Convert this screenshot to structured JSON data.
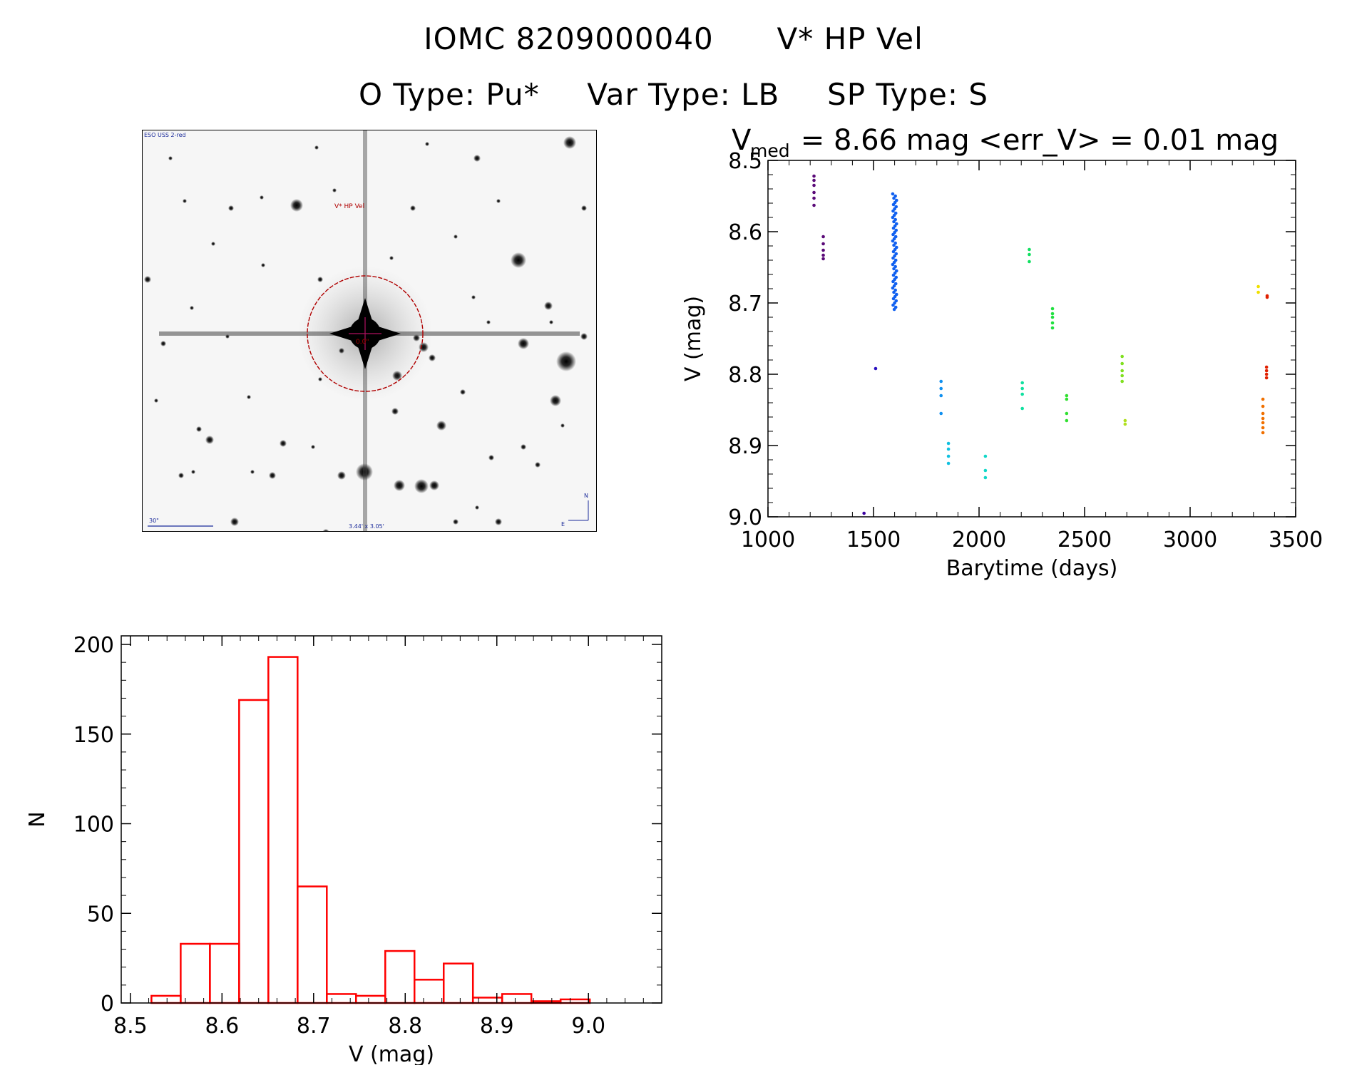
{
  "header": {
    "id_line": "IOMC 8209000040",
    "name_line": "V* HP Vel",
    "o_type": "O Type: Pu*",
    "var_type": "Var Type: LB",
    "sp_type": "SP Type: S"
  },
  "sky_image": {
    "survey_label": "ESO USS 2-red",
    "target_label": "V* HP Vel",
    "center_label": "0.0\"",
    "scale_label": "30\"",
    "field_label": "3.44' x 3.05'",
    "north_label": "N",
    "east_label": "E",
    "colors": {
      "frame": "#000000",
      "annotation": "#b00000",
      "text": "#1a2a9a"
    }
  },
  "chart_data": [
    {
      "type": "scatter",
      "name": "light-curve",
      "title_prefix": "V",
      "title_sub": "med",
      "title_rest": " = 8.66 mag <err_V> = 0.01 mag",
      "xlabel": "Barytime (days)",
      "ylabel": "V (mag)",
      "xlim": [
        1000,
        3500
      ],
      "ylim": [
        9.0,
        8.5
      ],
      "xticks": [
        1000,
        1500,
        2000,
        2500,
        3000,
        3500
      ],
      "xtick_labels": [
        "1000",
        "1500",
        "2000",
        "2500",
        "3000",
        "3500"
      ],
      "yticks": [
        8.5,
        8.6,
        8.7,
        8.8,
        8.9,
        9.0
      ],
      "ytick_labels": [
        "8.5",
        "8.6",
        "8.7",
        "8.8",
        "8.9",
        "9.0"
      ],
      "groups": [
        {
          "t": 1218,
          "mags": [
            8.522,
            8.528,
            8.535,
            8.545,
            8.553,
            8.563
          ],
          "color": "#5a0a78"
        },
        {
          "t": 1262,
          "mags": [
            8.607,
            8.617,
            8.626,
            8.633,
            8.638
          ],
          "color": "#5a0a78"
        },
        {
          "t": 1455,
          "mags": [
            8.995
          ],
          "color": "#3a00a0"
        },
        {
          "t": 1510,
          "mags": [
            8.792
          ],
          "color": "#2a10c0"
        },
        {
          "t": 1600,
          "mags": [
            8.547,
            8.56,
            8.575,
            8.59,
            8.6,
            8.61,
            8.62,
            8.63,
            8.64,
            8.65,
            8.66,
            8.67,
            8.68,
            8.69,
            8.7,
            8.71
          ],
          "color": "#1060f0",
          "dense": true
        },
        {
          "t": 1820,
          "mags": [
            8.81,
            8.82,
            8.83,
            8.855
          ],
          "color": "#1090f0"
        },
        {
          "t": 1855,
          "mags": [
            8.897,
            8.905,
            8.915,
            8.925
          ],
          "color": "#10c0e0"
        },
        {
          "t": 2030,
          "mags": [
            8.915,
            8.935,
            8.945
          ],
          "color": "#10d8c8"
        },
        {
          "t": 2205,
          "mags": [
            8.812,
            8.82,
            8.828,
            8.848
          ],
          "color": "#10e0a0"
        },
        {
          "t": 2238,
          "mags": [
            8.625,
            8.632,
            8.642
          ],
          "color": "#10e060"
        },
        {
          "t": 2348,
          "mags": [
            8.708,
            8.715,
            8.72,
            8.728,
            8.735
          ],
          "color": "#20e040"
        },
        {
          "t": 2415,
          "mags": [
            8.83,
            8.835,
            8.855,
            8.865
          ],
          "color": "#30e030"
        },
        {
          "t": 2678,
          "mags": [
            8.775,
            8.785,
            8.795,
            8.802,
            8.81
          ],
          "color": "#80e020"
        },
        {
          "t": 2692,
          "mags": [
            8.865,
            8.87
          ],
          "color": "#b0e020"
        },
        {
          "t": 3323,
          "mags": [
            8.677,
            8.685
          ],
          "color": "#f0e000"
        },
        {
          "t": 3345,
          "mags": [
            8.835,
            8.845,
            8.855,
            8.862,
            8.868,
            8.875,
            8.882
          ],
          "color": "#f07000"
        },
        {
          "t": 3365,
          "mags": [
            8.69,
            8.692
          ],
          "color": "#e02000"
        },
        {
          "t": 3362,
          "mags": [
            8.79,
            8.795,
            8.8,
            8.805
          ],
          "color": "#e02000"
        }
      ]
    },
    {
      "type": "bar",
      "name": "magnitude-histogram",
      "xlabel": "V (mag)",
      "ylabel": "N",
      "xlim": [
        8.49,
        9.08
      ],
      "ylim": [
        0,
        200
      ],
      "xticks": [
        8.5,
        8.6,
        8.7,
        8.8,
        8.9,
        9.0
      ],
      "xtick_labels": [
        "8.5",
        "8.6",
        "8.7",
        "8.8",
        "8.9",
        "9.0"
      ],
      "yticks": [
        0,
        50,
        100,
        150,
        200
      ],
      "ytick_labels": [
        "0",
        "50",
        "100",
        "150",
        "200"
      ],
      "bin_start": 8.523,
      "bin_width": 0.0319,
      "values": [
        4,
        33,
        33,
        169,
        193,
        65,
        5,
        4,
        29,
        13,
        22,
        3,
        5,
        1,
        2
      ],
      "color": "#ff0000"
    }
  ]
}
